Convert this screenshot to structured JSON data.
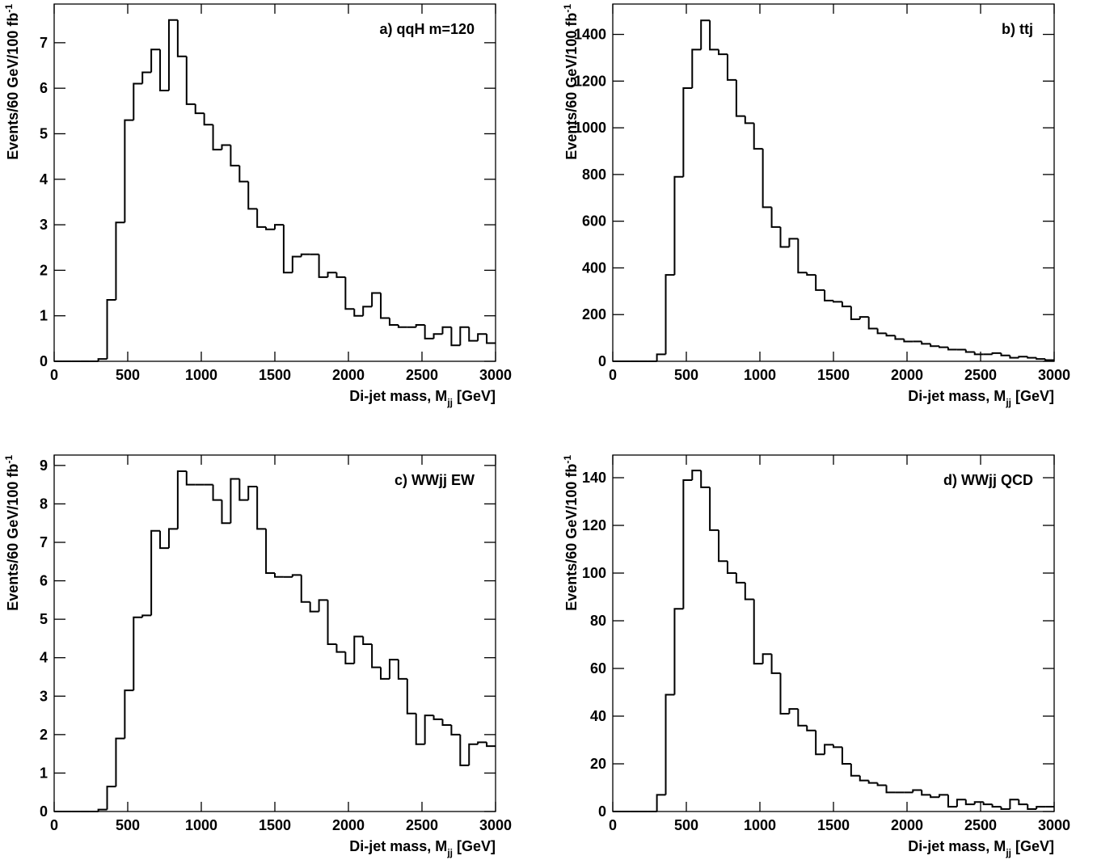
{
  "chart_data": [
    {
      "type": "histogram",
      "title": "a) qqH m=120",
      "xlabel": [
        "Di-jet mass, M",
        "jj",
        " [GeV]"
      ],
      "ylabel": [
        "Events/60 GeV/100 fb",
        "-1"
      ],
      "xlim": [
        0,
        3000
      ],
      "xticks": [
        0,
        500,
        1000,
        1500,
        2000,
        2500,
        3000
      ],
      "ylim": [
        0,
        7.85
      ],
      "yticks": [
        0,
        1,
        2,
        3,
        4,
        5,
        6,
        7
      ],
      "bins": [
        0,
        60,
        120,
        180,
        240,
        300,
        360,
        420,
        480,
        540,
        600,
        660,
        720,
        780,
        840,
        900,
        960,
        1020,
        1080,
        1140,
        1200,
        1260,
        1320,
        1380,
        1440,
        1500,
        1560,
        1620,
        1680,
        1740,
        1800,
        1860,
        1920,
        1980,
        2040,
        2100,
        2160,
        2220,
        2280,
        2340,
        2400,
        2460,
        2520,
        2580,
        2640,
        2700,
        2760,
        2820,
        2880,
        2940,
        3000
      ],
      "values": [
        0,
        0,
        0,
        0,
        0,
        0.05,
        1.35,
        3.05,
        5.3,
        6.1,
        6.35,
        6.85,
        5.95,
        7.5,
        6.7,
        5.65,
        5.45,
        5.2,
        4.65,
        4.75,
        4.3,
        3.95,
        3.35,
        2.95,
        2.9,
        3.0,
        1.95,
        2.3,
        2.35,
        2.35,
        1.85,
        1.95,
        1.85,
        1.15,
        1.0,
        1.2,
        1.5,
        0.95,
        0.8,
        0.75,
        0.75,
        0.8,
        0.5,
        0.6,
        0.75,
        0.35,
        0.75,
        0.45,
        0.6,
        0.4
      ]
    },
    {
      "type": "histogram",
      "title": "b) ttj",
      "xlabel": [
        "Di-jet mass, M",
        "jj",
        " [GeV]"
      ],
      "ylabel": [
        "Events/60 GeV/100 fb",
        "-1"
      ],
      "xlim": [
        0,
        3000
      ],
      "xticks": [
        0,
        500,
        1000,
        1500,
        2000,
        2500,
        3000
      ],
      "ylim": [
        0,
        1530
      ],
      "yticks": [
        0,
        200,
        400,
        600,
        800,
        1000,
        1200,
        1400
      ],
      "bins": [
        0,
        60,
        120,
        180,
        240,
        300,
        360,
        420,
        480,
        540,
        600,
        660,
        720,
        780,
        840,
        900,
        960,
        1020,
        1080,
        1140,
        1200,
        1260,
        1320,
        1380,
        1440,
        1500,
        1560,
        1620,
        1680,
        1740,
        1800,
        1860,
        1920,
        1980,
        2040,
        2100,
        2160,
        2220,
        2280,
        2340,
        2400,
        2460,
        2520,
        2580,
        2640,
        2700,
        2760,
        2820,
        2880,
        2940,
        3000
      ],
      "values": [
        0,
        0,
        0,
        0,
        0,
        30,
        370,
        790,
        1170,
        1335,
        1460,
        1335,
        1315,
        1205,
        1050,
        1020,
        910,
        660,
        575,
        490,
        525,
        380,
        370,
        305,
        260,
        255,
        235,
        180,
        190,
        140,
        120,
        110,
        95,
        85,
        85,
        75,
        65,
        60,
        50,
        50,
        40,
        30,
        30,
        35,
        25,
        15,
        20,
        15,
        10,
        5
      ]
    },
    {
      "type": "histogram",
      "title": "c) WWjj EW",
      "xlabel": [
        "Di-jet mass, M",
        "jj",
        " [GeV]"
      ],
      "ylabel": [
        "Events/60 GeV/100 fb",
        "-1"
      ],
      "xlim": [
        0,
        3000
      ],
      "xticks": [
        0,
        500,
        1000,
        1500,
        2000,
        2500,
        3000
      ],
      "ylim": [
        0,
        9.27
      ],
      "yticks": [
        0,
        1,
        2,
        3,
        4,
        5,
        6,
        7,
        8,
        9
      ],
      "bins": [
        0,
        60,
        120,
        180,
        240,
        300,
        360,
        420,
        480,
        540,
        600,
        660,
        720,
        780,
        840,
        900,
        960,
        1020,
        1080,
        1140,
        1200,
        1260,
        1320,
        1380,
        1440,
        1500,
        1560,
        1620,
        1680,
        1740,
        1800,
        1860,
        1920,
        1980,
        2040,
        2100,
        2160,
        2220,
        2280,
        2340,
        2400,
        2460,
        2520,
        2580,
        2640,
        2700,
        2760,
        2820,
        2880,
        2940,
        3000
      ],
      "values": [
        0,
        0,
        0,
        0,
        0,
        0.05,
        0.65,
        1.9,
        3.15,
        5.05,
        5.1,
        7.3,
        6.85,
        7.35,
        8.85,
        8.5,
        8.5,
        8.5,
        8.1,
        7.5,
        8.65,
        8.1,
        8.45,
        7.35,
        6.2,
        6.1,
        6.1,
        6.15,
        5.45,
        5.2,
        5.5,
        4.35,
        4.15,
        3.85,
        4.55,
        4.35,
        3.75,
        3.45,
        3.95,
        3.45,
        2.55,
        1.75,
        2.5,
        2.4,
        2.25,
        2.0,
        1.2,
        1.75,
        1.8,
        1.7
      ]
    },
    {
      "type": "histogram",
      "title": "d) WWjj QCD",
      "xlabel": [
        "Di-jet mass, M",
        "jj",
        " [GeV]"
      ],
      "ylabel": [
        "Events/60 GeV/100 fb",
        "-1"
      ],
      "xlim": [
        0,
        3000
      ],
      "xticks": [
        0,
        500,
        1000,
        1500,
        2000,
        2500,
        3000
      ],
      "ylim": [
        0,
        149.5
      ],
      "yticks": [
        0,
        20,
        40,
        60,
        80,
        100,
        120,
        140
      ],
      "bins": [
        0,
        60,
        120,
        180,
        240,
        300,
        360,
        420,
        480,
        540,
        600,
        660,
        720,
        780,
        840,
        900,
        960,
        1020,
        1080,
        1140,
        1200,
        1260,
        1320,
        1380,
        1440,
        1500,
        1560,
        1620,
        1680,
        1740,
        1800,
        1860,
        1920,
        1980,
        2040,
        2100,
        2160,
        2220,
        2280,
        2340,
        2400,
        2460,
        2520,
        2580,
        2640,
        2700,
        2760,
        2820,
        2880,
        2940,
        3000
      ],
      "values": [
        0,
        0,
        0,
        0,
        0,
        7,
        49,
        85,
        139,
        143,
        136,
        118,
        105,
        100,
        96,
        89,
        62,
        66,
        58,
        41,
        43,
        36,
        34,
        24,
        28,
        27,
        20,
        15,
        13,
        12,
        11,
        8,
        8,
        8,
        9,
        7,
        6,
        7,
        2,
        5,
        3,
        4,
        3,
        2,
        1,
        5,
        3,
        1,
        2,
        2
      ]
    }
  ]
}
